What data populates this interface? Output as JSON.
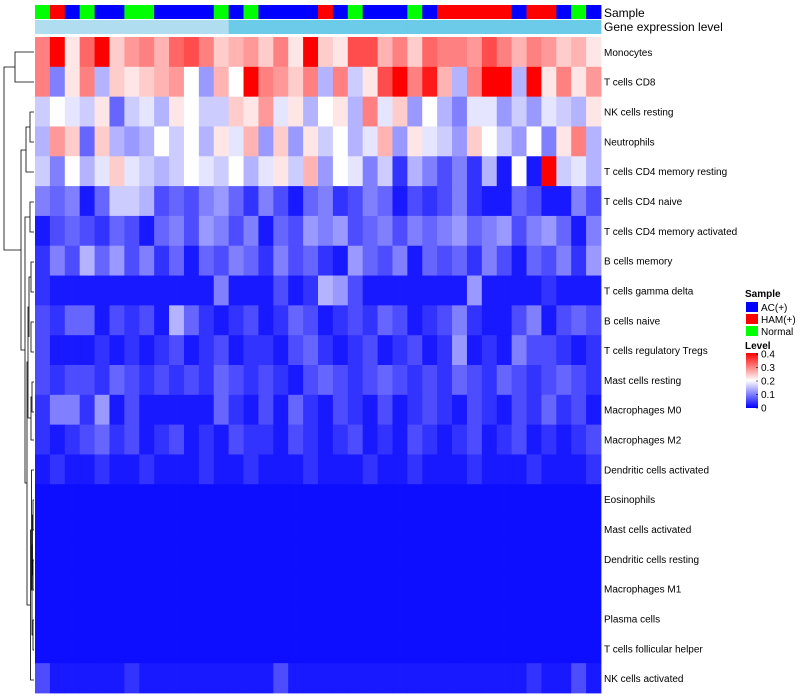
{
  "chart_data": {
    "type": "heatmap",
    "title": "",
    "annotation_titles": {
      "sample": "Sample",
      "gene": "Gene expression level"
    },
    "legend": {
      "sample_title": "Sample",
      "sample_entries": [
        {
          "label": "AC(+)",
          "color": "#0000ff"
        },
        {
          "label": "HAM(+)",
          "color": "#ff0000"
        },
        {
          "label": "Normal",
          "color": "#00ff00"
        }
      ],
      "level_title": "Level",
      "level_ticks": [
        "0.4",
        "0.3",
        "0.2",
        "0.1",
        "0"
      ],
      "level_range": [
        0,
        0.4
      ],
      "placement": "right",
      "colors": {
        "low": "#0000ff",
        "mid": "#ffffff",
        "high": "#ff0000"
      }
    },
    "column_samples": [
      "Normal",
      "HAM(+)",
      "AC(+)",
      "Normal",
      "AC(+)",
      "AC(+)",
      "Normal",
      "Normal",
      "AC(+)",
      "AC(+)",
      "AC(+)",
      "AC(+)",
      "Normal",
      "AC(+)",
      "Normal",
      "AC(+)",
      "AC(+)",
      "AC(+)",
      "AC(+)",
      "HAM(+)",
      "AC(+)",
      "Normal",
      "AC(+)",
      "AC(+)",
      "AC(+)",
      "Normal",
      "AC(+)",
      "HAM(+)",
      "HAM(+)",
      "HAM(+)",
      "HAM(+)",
      "HAM(+)",
      "AC(+)",
      "HAM(+)",
      "HAM(+)",
      "AC(+)",
      "Normal",
      "AC(+)"
    ],
    "gene_expression_colors": [
      "#b0def0",
      "#6ccbe8"
    ],
    "rows": [
      "Monocytes",
      "T cells CD8",
      "NK cells resting",
      "Neutrophils",
      "T cells CD4 memory resting",
      "T cells CD4 naive",
      "T cells CD4 memory activated",
      "B cells memory",
      "T cells gamma delta",
      "B cells naive",
      "T cells regulatory  Tregs",
      "Mast cells resting",
      "Macrophages M0",
      "Macrophages M2",
      "Dendritic cells activated",
      "Eosinophils",
      "Mast cells activated",
      "Dendritic cells resting",
      "Macrophages M1",
      "Plasma cells",
      "T cells follicular helper",
      "NK cells activated"
    ],
    "values": [
      [
        0.3,
        0.4,
        0.22,
        0.32,
        0.4,
        0.24,
        0.28,
        0.3,
        0.26,
        0.32,
        0.34,
        0.3,
        0.24,
        0.26,
        0.28,
        0.24,
        0.3,
        0.22,
        0.4,
        0.24,
        0.22,
        0.34,
        0.34,
        0.26,
        0.3,
        0.24,
        0.32,
        0.3,
        0.3,
        0.28,
        0.34,
        0.3,
        0.26,
        0.3,
        0.28,
        0.24,
        0.26,
        0.22
      ],
      [
        0.3,
        0.1,
        0.22,
        0.3,
        0.14,
        0.24,
        0.22,
        0.24,
        0.26,
        0.28,
        0.2,
        0.12,
        0.26,
        0.2,
        0.4,
        0.3,
        0.28,
        0.24,
        0.3,
        0.14,
        0.3,
        0.16,
        0.22,
        0.34,
        0.4,
        0.3,
        0.38,
        0.26,
        0.14,
        0.3,
        0.4,
        0.4,
        0.14,
        0.4,
        0.22,
        0.3,
        0.22,
        0.28
      ],
      [
        0.16,
        0.2,
        0.18,
        0.16,
        0.22,
        0.08,
        0.16,
        0.18,
        0.14,
        0.22,
        0.2,
        0.16,
        0.16,
        0.24,
        0.22,
        0.28,
        0.18,
        0.22,
        0.14,
        0.2,
        0.22,
        0.14,
        0.3,
        0.18,
        0.24,
        0.12,
        0.2,
        0.14,
        0.1,
        0.18,
        0.18,
        0.12,
        0.16,
        0.12,
        0.18,
        0.16,
        0.14,
        0.22
      ],
      [
        0.14,
        0.28,
        0.24,
        0.08,
        0.24,
        0.14,
        0.12,
        0.14,
        0.2,
        0.16,
        0.2,
        0.14,
        0.22,
        0.18,
        0.26,
        0.12,
        0.24,
        0.12,
        0.22,
        0.16,
        0.2,
        0.14,
        0.18,
        0.26,
        0.12,
        0.22,
        0.18,
        0.16,
        0.12,
        0.24,
        0.2,
        0.16,
        0.12,
        0.2,
        0.1,
        0.22,
        0.3,
        0.14
      ],
      [
        0.16,
        0.1,
        0.2,
        0.14,
        0.18,
        0.24,
        0.18,
        0.16,
        0.14,
        0.16,
        0.2,
        0.18,
        0.16,
        0.2,
        0.14,
        0.18,
        0.22,
        0.16,
        0.26,
        0.12,
        0.2,
        0.18,
        0.1,
        0.16,
        0.04,
        0.14,
        0.1,
        0.06,
        0.1,
        0.04,
        0.14,
        0.02,
        0.2,
        0.02,
        0.4,
        0.16,
        0.18,
        0.14
      ],
      [
        0.1,
        0.08,
        0.1,
        0.02,
        0.08,
        0.16,
        0.16,
        0.14,
        0.06,
        0.08,
        0.06,
        0.1,
        0.12,
        0.08,
        0.04,
        0.1,
        0.06,
        0.02,
        0.08,
        0.1,
        0.04,
        0.06,
        0.1,
        0.08,
        0.02,
        0.06,
        0.04,
        0.06,
        0.1,
        0.04,
        0.02,
        0.02,
        0.08,
        0.06,
        0.02,
        0.02,
        0.1,
        0.06
      ],
      [
        0.02,
        0.06,
        0.08,
        0.06,
        0.04,
        0.08,
        0.06,
        0.02,
        0.08,
        0.1,
        0.06,
        0.12,
        0.1,
        0.06,
        0.1,
        0.02,
        0.08,
        0.06,
        0.12,
        0.1,
        0.12,
        0.06,
        0.08,
        0.1,
        0.06,
        0.1,
        0.08,
        0.1,
        0.12,
        0.08,
        0.1,
        0.12,
        0.06,
        0.1,
        0.12,
        0.08,
        0.02,
        0.1
      ],
      [
        0.04,
        0.1,
        0.06,
        0.14,
        0.08,
        0.12,
        0.06,
        0.1,
        0.04,
        0.08,
        0.02,
        0.08,
        0.06,
        0.1,
        0.08,
        0.04,
        0.1,
        0.06,
        0.08,
        0.04,
        0.02,
        0.12,
        0.08,
        0.06,
        0.1,
        0.02,
        0.08,
        0.06,
        0.08,
        0.04,
        0.1,
        0.06,
        0.02,
        0.08,
        0.06,
        0.1,
        0.04,
        0.12
      ],
      [
        0.04,
        0.02,
        0.02,
        0.02,
        0.02,
        0.02,
        0.02,
        0.02,
        0.02,
        0.02,
        0.02,
        0.02,
        0.1,
        0.02,
        0.02,
        0.02,
        0.06,
        0.02,
        0.04,
        0.14,
        0.12,
        0.06,
        0.02,
        0.02,
        0.02,
        0.02,
        0.02,
        0.02,
        0.02,
        0.12,
        0.02,
        0.02,
        0.02,
        0.02,
        0.04,
        0.02,
        0.02,
        0.02
      ],
      [
        0.06,
        0.04,
        0.08,
        0.08,
        0.02,
        0.06,
        0.04,
        0.06,
        0.02,
        0.14,
        0.08,
        0.04,
        0.02,
        0.04,
        0.06,
        0.02,
        0.04,
        0.08,
        0.06,
        0.02,
        0.04,
        0.06,
        0.04,
        0.08,
        0.06,
        0.02,
        0.04,
        0.06,
        0.1,
        0.04,
        0.02,
        0.02,
        0.06,
        0.1,
        0.02,
        0.06,
        0.08,
        0.06
      ],
      [
        0.06,
        0.02,
        0.02,
        0.02,
        0.04,
        0.02,
        0.04,
        0.02,
        0.04,
        0.06,
        0.02,
        0.04,
        0.06,
        0.02,
        0.04,
        0.04,
        0.02,
        0.06,
        0.08,
        0.04,
        0.02,
        0.04,
        0.06,
        0.02,
        0.04,
        0.06,
        0.02,
        0.04,
        0.12,
        0.02,
        0.04,
        0.02,
        0.1,
        0.06,
        0.06,
        0.04,
        0.02,
        0.04
      ],
      [
        0.06,
        0.04,
        0.06,
        0.06,
        0.04,
        0.08,
        0.06,
        0.04,
        0.06,
        0.04,
        0.06,
        0.04,
        0.08,
        0.06,
        0.04,
        0.06,
        0.04,
        0.02,
        0.06,
        0.08,
        0.06,
        0.04,
        0.06,
        0.08,
        0.06,
        0.04,
        0.06,
        0.04,
        0.08,
        0.06,
        0.04,
        0.08,
        0.06,
        0.04,
        0.06,
        0.08,
        0.06,
        0.04
      ],
      [
        0.04,
        0.1,
        0.1,
        0.04,
        0.12,
        0.02,
        0.06,
        0.02,
        0.02,
        0.02,
        0.02,
        0.02,
        0.08,
        0.04,
        0.02,
        0.06,
        0.02,
        0.08,
        0.04,
        0.02,
        0.06,
        0.04,
        0.02,
        0.06,
        0.02,
        0.04,
        0.06,
        0.04,
        0.02,
        0.06,
        0.04,
        0.02,
        0.06,
        0.04,
        0.08,
        0.04,
        0.06,
        0.02
      ],
      [
        0.04,
        0.02,
        0.04,
        0.06,
        0.08,
        0.04,
        0.06,
        0.02,
        0.04,
        0.06,
        0.02,
        0.04,
        0.02,
        0.06,
        0.04,
        0.04,
        0.02,
        0.06,
        0.04,
        0.02,
        0.04,
        0.06,
        0.02,
        0.04,
        0.02,
        0.06,
        0.04,
        0.02,
        0.04,
        0.06,
        0.02,
        0.04,
        0.06,
        0.02,
        0.04,
        0.02,
        0.04,
        0.06
      ],
      [
        0.02,
        0.04,
        0.02,
        0.02,
        0.04,
        0.02,
        0.02,
        0.04,
        0.02,
        0.02,
        0.02,
        0.04,
        0.02,
        0.02,
        0.04,
        0.02,
        0.02,
        0.02,
        0.04,
        0.02,
        0.02,
        0.02,
        0.04,
        0.02,
        0.02,
        0.04,
        0.02,
        0.02,
        0.02,
        0.04,
        0.02,
        0.02,
        0.02,
        0.04,
        0.02,
        0.02,
        0.02,
        0.04
      ],
      [
        0.01,
        0.01,
        0.01,
        0.01,
        0.01,
        0.01,
        0.01,
        0.01,
        0.01,
        0.01,
        0.01,
        0.01,
        0.01,
        0.01,
        0.01,
        0.01,
        0.01,
        0.01,
        0.01,
        0.01,
        0.01,
        0.01,
        0.01,
        0.01,
        0.01,
        0.01,
        0.01,
        0.01,
        0.01,
        0.01,
        0.01,
        0.01,
        0.01,
        0.01,
        0.01,
        0.01,
        0.01,
        0.01
      ],
      [
        0.01,
        0.01,
        0.01,
        0.01,
        0.01,
        0.01,
        0.01,
        0.01,
        0.01,
        0.01,
        0.01,
        0.01,
        0.01,
        0.01,
        0.01,
        0.01,
        0.01,
        0.01,
        0.01,
        0.01,
        0.01,
        0.01,
        0.01,
        0.01,
        0.01,
        0.01,
        0.01,
        0.01,
        0.01,
        0.01,
        0.01,
        0.01,
        0.01,
        0.01,
        0.01,
        0.01,
        0.01,
        0.01
      ],
      [
        0.01,
        0.01,
        0.01,
        0.01,
        0.01,
        0.01,
        0.01,
        0.01,
        0.01,
        0.01,
        0.01,
        0.01,
        0.01,
        0.01,
        0.01,
        0.01,
        0.01,
        0.01,
        0.01,
        0.01,
        0.01,
        0.01,
        0.01,
        0.01,
        0.01,
        0.01,
        0.01,
        0.01,
        0.01,
        0.01,
        0.01,
        0.01,
        0.01,
        0.01,
        0.01,
        0.01,
        0.01,
        0.01
      ],
      [
        0.01,
        0.01,
        0.01,
        0.01,
        0.01,
        0.01,
        0.01,
        0.01,
        0.01,
        0.01,
        0.01,
        0.01,
        0.01,
        0.01,
        0.01,
        0.01,
        0.01,
        0.01,
        0.01,
        0.01,
        0.01,
        0.01,
        0.01,
        0.01,
        0.01,
        0.01,
        0.01,
        0.01,
        0.01,
        0.01,
        0.01,
        0.01,
        0.01,
        0.01,
        0.01,
        0.01,
        0.01,
        0.01
      ],
      [
        0.01,
        0.01,
        0.01,
        0.01,
        0.01,
        0.01,
        0.01,
        0.01,
        0.01,
        0.01,
        0.01,
        0.01,
        0.01,
        0.01,
        0.01,
        0.01,
        0.01,
        0.01,
        0.01,
        0.01,
        0.01,
        0.01,
        0.01,
        0.01,
        0.01,
        0.01,
        0.01,
        0.01,
        0.01,
        0.01,
        0.01,
        0.01,
        0.01,
        0.01,
        0.01,
        0.01,
        0.01,
        0.01
      ],
      [
        0.01,
        0.01,
        0.01,
        0.01,
        0.01,
        0.01,
        0.01,
        0.01,
        0.01,
        0.01,
        0.01,
        0.01,
        0.01,
        0.01,
        0.01,
        0.01,
        0.01,
        0.01,
        0.01,
        0.01,
        0.01,
        0.01,
        0.01,
        0.01,
        0.01,
        0.01,
        0.01,
        0.01,
        0.01,
        0.01,
        0.01,
        0.01,
        0.01,
        0.01,
        0.01,
        0.01,
        0.01,
        0.01
      ],
      [
        0.06,
        0.02,
        0.02,
        0.02,
        0.02,
        0.02,
        0.04,
        0.02,
        0.02,
        0.02,
        0.02,
        0.02,
        0.02,
        0.02,
        0.02,
        0.02,
        0.06,
        0.02,
        0.02,
        0.02,
        0.02,
        0.02,
        0.02,
        0.02,
        0.02,
        0.02,
        0.02,
        0.02,
        0.02,
        0.02,
        0.02,
        0.02,
        0.02,
        0.04,
        0.02,
        0.02,
        0.06,
        0.02
      ]
    ]
  }
}
